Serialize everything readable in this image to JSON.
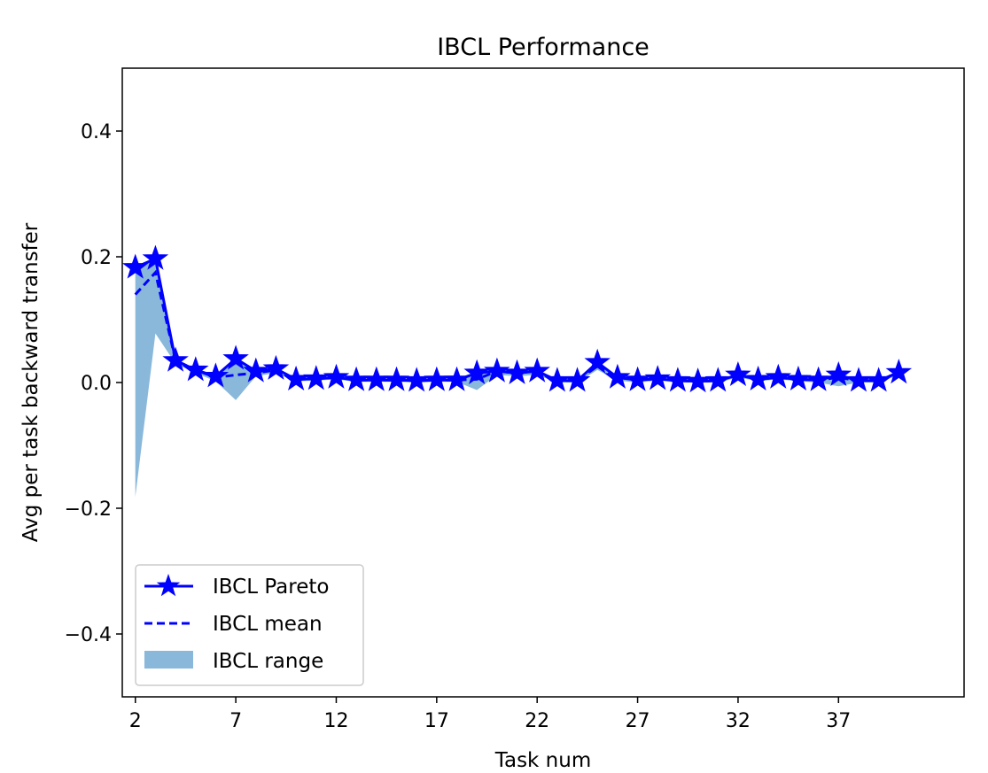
{
  "chart_data": {
    "type": "line",
    "title": "IBCL Performance",
    "xlabel": "Task num",
    "ylabel": "Avg per task backward transfer",
    "xlim": [
      1.35,
      43.25
    ],
    "ylim": [
      -0.5,
      0.5
    ],
    "x_ticks": [
      2,
      7,
      12,
      17,
      22,
      27,
      32,
      37
    ],
    "y_ticks": [
      -0.4,
      -0.2,
      0.0,
      0.2,
      0.4
    ],
    "y_tick_labels": [
      "−0.4",
      "−0.2",
      "0.0",
      "0.2",
      "0.4"
    ],
    "grid": false,
    "legend_position": "lower-left",
    "x": [
      2,
      3,
      4,
      5,
      6,
      7,
      8,
      9,
      10,
      11,
      12,
      13,
      14,
      15,
      16,
      17,
      18,
      19,
      20,
      21,
      22,
      23,
      24,
      25,
      26,
      27,
      28,
      29,
      30,
      31,
      32,
      33,
      34,
      35,
      36,
      37,
      38,
      39,
      40
    ],
    "series": [
      {
        "name": "IBCL Pareto",
        "style": "solid-line-star-markers",
        "color": "#0000ff",
        "values": [
          0.183,
          0.197,
          0.035,
          0.02,
          0.01,
          0.038,
          0.018,
          0.022,
          0.005,
          0.006,
          0.008,
          0.004,
          0.004,
          0.004,
          0.003,
          0.004,
          0.004,
          0.015,
          0.018,
          0.015,
          0.018,
          0.003,
          0.003,
          0.032,
          0.008,
          0.004,
          0.006,
          0.003,
          0.002,
          0.003,
          0.012,
          0.005,
          0.008,
          0.005,
          0.004,
          0.012,
          0.003,
          0.003,
          0.016
        ]
      },
      {
        "name": "IBCL mean",
        "style": "dashed-line",
        "color": "#0000ff",
        "values": [
          0.14,
          0.175,
          0.035,
          0.02,
          0.008,
          0.012,
          0.015,
          0.02,
          0.005,
          0.006,
          0.008,
          0.004,
          0.004,
          0.004,
          0.003,
          0.004,
          0.004,
          0.005,
          0.018,
          0.015,
          0.018,
          0.003,
          0.003,
          0.028,
          0.008,
          0.004,
          0.006,
          0.003,
          0.002,
          0.003,
          0.012,
          0.005,
          0.008,
          0.005,
          0.004,
          0.008,
          0.003,
          0.003,
          0.016
        ]
      },
      {
        "name": "IBCL range",
        "style": "band",
        "color": "#89b8db",
        "lower": [
          -0.182,
          0.078,
          0.03,
          0.015,
          0.002,
          -0.028,
          0.01,
          0.015,
          0.002,
          0.003,
          0.005,
          0.001,
          0.001,
          0.001,
          0.0,
          0.001,
          0.001,
          -0.012,
          0.012,
          0.01,
          0.012,
          0.0,
          0.0,
          0.02,
          0.003,
          0.0,
          0.003,
          0.0,
          0.0,
          0.0,
          0.008,
          0.002,
          0.005,
          0.002,
          0.0,
          -0.006,
          0.0,
          0.0,
          0.012
        ],
        "upper": [
          0.183,
          0.197,
          0.038,
          0.022,
          0.012,
          0.038,
          0.02,
          0.024,
          0.007,
          0.008,
          0.01,
          0.006,
          0.006,
          0.006,
          0.005,
          0.006,
          0.006,
          0.018,
          0.022,
          0.018,
          0.021,
          0.005,
          0.005,
          0.034,
          0.01,
          0.006,
          0.008,
          0.005,
          0.004,
          0.005,
          0.014,
          0.007,
          0.01,
          0.007,
          0.006,
          0.014,
          0.005,
          0.005,
          0.018
        ]
      }
    ]
  }
}
